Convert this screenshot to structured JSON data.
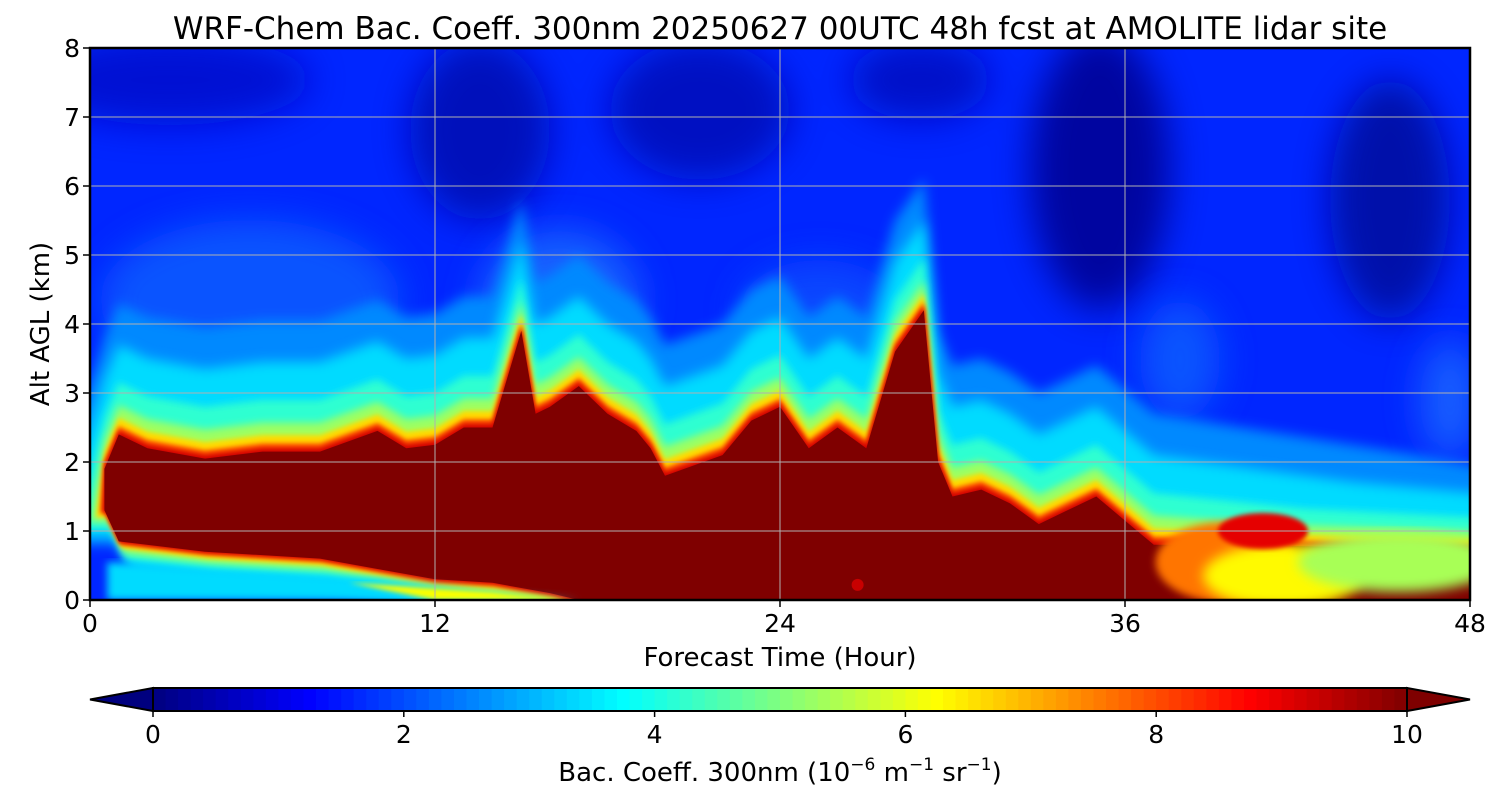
{
  "chart_data": {
    "type": "heatmap",
    "title": "WRF-Chem Bac. Coeff. 300nm  20250627 00UTC 48h fcst at AMOLITE lidar site",
    "xlabel": "Forecast Time (Hour)",
    "ylabel": "Alt AGL (km)",
    "xlim": [
      0,
      48
    ],
    "ylim": [
      0,
      8
    ],
    "x_ticks": [
      0,
      12,
      24,
      36,
      48
    ],
    "y_ticks": [
      0,
      1,
      2,
      3,
      4,
      5,
      6,
      7,
      8
    ],
    "grid": true,
    "colorbar": {
      "label_main": "Bac. Coeff. 300nm  (10",
      "label_exp1": "−6",
      "label_unit1": " m",
      "label_exp2": "−1",
      "label_unit2": " sr",
      "label_exp3": "−1",
      "label_close": ")",
      "range": [
        0,
        10
      ],
      "ticks": [
        0,
        2,
        4,
        6,
        8,
        10
      ],
      "extend": "both",
      "colormap": "jet",
      "colors": [
        "#00007f",
        "#0000ff",
        "#007fff",
        "#00ffff",
        "#7fff7f",
        "#ffff00",
        "#ff7f00",
        "#ff0000",
        "#7f0000"
      ]
    },
    "background_value": 1.3,
    "upper_boundary_of_main_layer_km": {
      "x": [
        0.5,
        1,
        2,
        4,
        6,
        8,
        10,
        11,
        12,
        13,
        14,
        15,
        15.5,
        16,
        17,
        18,
        19,
        19.5,
        20,
        22,
        23,
        24,
        25,
        26,
        27,
        28,
        29,
        29.5,
        30,
        31,
        32,
        33,
        34,
        35,
        36,
        37
      ],
      "y": [
        1.9,
        2.4,
        2.2,
        2.05,
        2.15,
        2.15,
        2.45,
        2.2,
        2.25,
        2.5,
        2.5,
        3.9,
        2.7,
        2.8,
        3.1,
        2.7,
        2.45,
        2.2,
        1.8,
        2.1,
        2.6,
        2.8,
        2.2,
        2.5,
        2.2,
        3.6,
        4.2,
        2.0,
        1.5,
        1.6,
        1.4,
        1.1,
        1.3,
        1.5,
        1.15,
        0.8
      ]
    },
    "lower_boundary_of_main_layer_km": {
      "x": [
        0.5,
        1,
        4,
        8,
        10,
        12,
        14,
        16,
        17
      ],
      "y": [
        1.3,
        0.85,
        0.7,
        0.6,
        0.45,
        0.3,
        0.25,
        0.1,
        0.0
      ]
    }
  }
}
